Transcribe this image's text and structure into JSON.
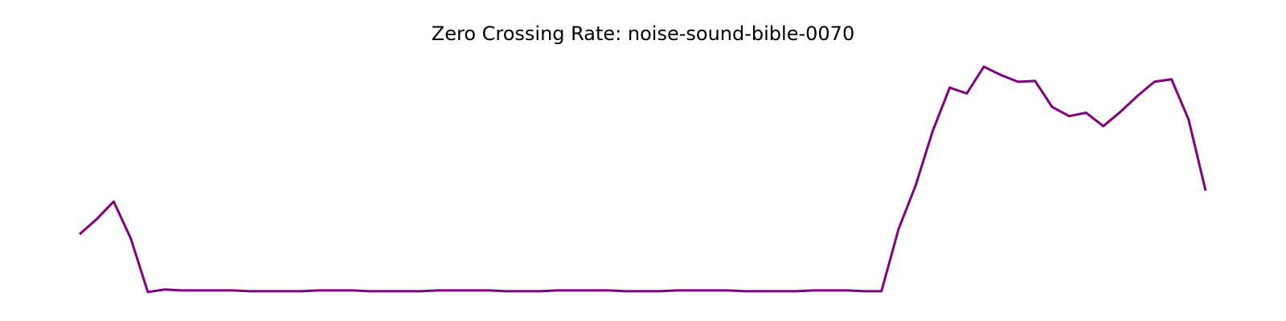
{
  "chart_data": {
    "type": "line",
    "title": "Zero Crossing Rate: noise-sound-bible-0070",
    "series": [
      {
        "color": "#800080",
        "values": [
          0.075,
          0.093,
          0.114,
          0.07,
          0.006,
          0.009,
          0.008,
          0.008,
          0.008,
          0.008,
          0.007,
          0.007,
          0.007,
          0.007,
          0.008,
          0.008,
          0.008,
          0.007,
          0.007,
          0.007,
          0.007,
          0.008,
          0.008,
          0.008,
          0.008,
          0.007,
          0.007,
          0.007,
          0.008,
          0.008,
          0.008,
          0.008,
          0.007,
          0.007,
          0.007,
          0.008,
          0.008,
          0.008,
          0.008,
          0.007,
          0.007,
          0.007,
          0.007,
          0.008,
          0.008,
          0.008,
          0.007,
          0.007,
          0.081,
          0.133,
          0.198,
          0.25,
          0.243,
          0.275,
          0.265,
          0.257,
          0.258,
          0.227,
          0.216,
          0.22,
          0.204,
          0.221,
          0.24,
          0.257,
          0.26,
          0.212,
          0.127
        ]
      }
    ],
    "ylim": [
      -0.0075,
      0.2885
    ]
  }
}
